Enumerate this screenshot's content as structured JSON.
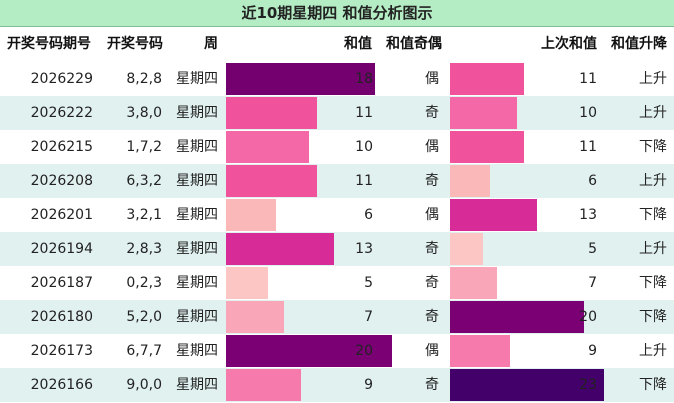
{
  "title": "近10期星期四 和值分析图示",
  "headers": {
    "issue": "开奖号码期号",
    "numbers": "开奖号码",
    "weekday": "周",
    "sum": "和值",
    "parity": "和值奇偶",
    "prev_sum": "上次和值",
    "trend": "和值升降"
  },
  "rows": [
    {
      "issue": "2026229",
      "numbers": "8,2,8",
      "weekday": "星期四",
      "sum": "18",
      "parity": "偶",
      "prev_sum": "11",
      "trend": "上升"
    },
    {
      "issue": "2026222",
      "numbers": "3,8,0",
      "weekday": "星期四",
      "sum": "11",
      "parity": "奇",
      "prev_sum": "10",
      "trend": "上升"
    },
    {
      "issue": "2026215",
      "numbers": "1,7,2",
      "weekday": "星期四",
      "sum": "10",
      "parity": "偶",
      "prev_sum": "11",
      "trend": "下降"
    },
    {
      "issue": "2026208",
      "numbers": "6,3,2",
      "weekday": "星期四",
      "sum": "11",
      "parity": "奇",
      "prev_sum": "6",
      "trend": "上升"
    },
    {
      "issue": "2026201",
      "numbers": "3,2,1",
      "weekday": "星期四",
      "sum": "6",
      "parity": "偶",
      "prev_sum": "13",
      "trend": "下降"
    },
    {
      "issue": "2026194",
      "numbers": "2,8,3",
      "weekday": "星期四",
      "sum": "13",
      "parity": "奇",
      "prev_sum": "5",
      "trend": "上升"
    },
    {
      "issue": "2026187",
      "numbers": "0,2,3",
      "weekday": "星期四",
      "sum": "5",
      "parity": "奇",
      "prev_sum": "7",
      "trend": "下降"
    },
    {
      "issue": "2026180",
      "numbers": "5,2,0",
      "weekday": "星期四",
      "sum": "7",
      "parity": "奇",
      "prev_sum": "20",
      "trend": "下降"
    },
    {
      "issue": "2026173",
      "numbers": "6,7,7",
      "weekday": "星期四",
      "sum": "20",
      "parity": "偶",
      "prev_sum": "9",
      "trend": "上升"
    },
    {
      "issue": "2026166",
      "numbers": "9,0,0",
      "weekday": "星期四",
      "sum": "9",
      "parity": "奇",
      "prev_sum": "23",
      "trend": "下降"
    }
  ],
  "colors": {
    "5": "#fbc6c4",
    "6": "#fab8b8",
    "7": "#f8a6b8",
    "9": "#f67aac",
    "10": "#f468a8",
    "11": "#f0529c",
    "13": "#d72b98",
    "18": "#740070",
    "20": "#7a0074",
    "23": "#44006a"
  }
}
